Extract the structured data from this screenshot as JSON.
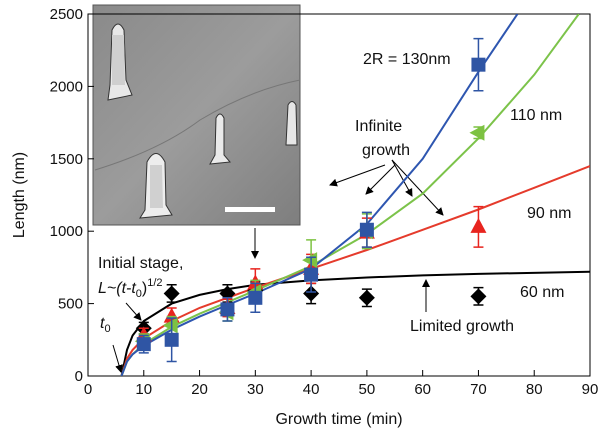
{
  "chart_data": {
    "type": "scatter",
    "x_label": "Growth time (min)",
    "y_label": "Length (nm)",
    "xlim": [
      0,
      90
    ],
    "xticks": [
      0,
      10,
      20,
      30,
      40,
      50,
      60,
      70,
      80,
      90
    ],
    "ylim": [
      0,
      2500
    ],
    "yticks": [
      0,
      500,
      1000,
      1500,
      2000,
      2500
    ],
    "x": [
      10,
      15,
      25,
      30,
      40,
      50,
      70
    ],
    "series": [
      {
        "name": "60 nm",
        "color": "#000000",
        "marker": "diamond",
        "values": [
          330,
          570,
          570,
          590,
          570,
          540,
          550
        ],
        "errors": [
          40,
          60,
          60,
          60,
          70,
          60,
          60
        ]
      },
      {
        "name": "90 nm",
        "color": "#e8241f",
        "marker": "triangle-up",
        "values": [
          280,
          410,
          470,
          640,
          740,
          990,
          1030
        ],
        "errors": [
          50,
          60,
          60,
          100,
          100,
          100,
          140
        ]
      },
      {
        "name": "110 nm",
        "color": "#7dc242",
        "marker": "triangle-left",
        "values": [
          240,
          350,
          440,
          580,
          800,
          1000,
          1680
        ],
        "errors": [
          50,
          60,
          60,
          80,
          140,
          120,
          40
        ]
      },
      {
        "name": "2R = 130nm",
        "color": "#2f55a4",
        "marker": "square",
        "values": [
          220,
          250,
          460,
          540,
          700,
          1010,
          2150
        ],
        "errors": [
          60,
          150,
          80,
          100,
          120,
          120,
          180
        ]
      }
    ],
    "curves": [
      {
        "color": "#000000",
        "x": [
          6,
          7,
          8,
          10,
          15,
          20,
          25,
          30,
          40,
          50,
          60,
          70,
          90
        ],
        "values": [
          0,
          180,
          280,
          380,
          500,
          560,
          600,
          630,
          660,
          680,
          695,
          705,
          720
        ]
      },
      {
        "color": "#e53b2c",
        "x": [
          6,
          7,
          8,
          10,
          15,
          20,
          25,
          30,
          40,
          50,
          60,
          70,
          80,
          90
        ],
        "values": [
          0,
          120,
          180,
          260,
          380,
          470,
          540,
          610,
          740,
          870,
          1010,
          1150,
          1300,
          1450
        ]
      },
      {
        "color": "#7cc34a",
        "x": [
          6,
          7,
          8,
          10,
          15,
          20,
          25,
          30,
          40,
          50,
          60,
          70,
          80,
          88
        ],
        "values": [
          0,
          100,
          150,
          220,
          340,
          430,
          510,
          590,
          760,
          980,
          1260,
          1640,
          2080,
          2500
        ]
      },
      {
        "color": "#2e56b0",
        "x": [
          6,
          7,
          8,
          10,
          15,
          20,
          25,
          30,
          40,
          50,
          60,
          70,
          77
        ],
        "values": [
          0,
          100,
          150,
          210,
          320,
          410,
          490,
          570,
          740,
          1050,
          1500,
          2100,
          2500
        ]
      }
    ],
    "annotations": {
      "infinite_1": "Infinite",
      "infinite_2": "growth",
      "limited": "Limited growth",
      "initial": "Initial stage,",
      "formula": {
        "main": "L~(t-t",
        "sub": "0",
        "close": ")",
        "sup": "1/2"
      },
      "t0": {
        "main": "t",
        "sub": "0"
      }
    }
  }
}
